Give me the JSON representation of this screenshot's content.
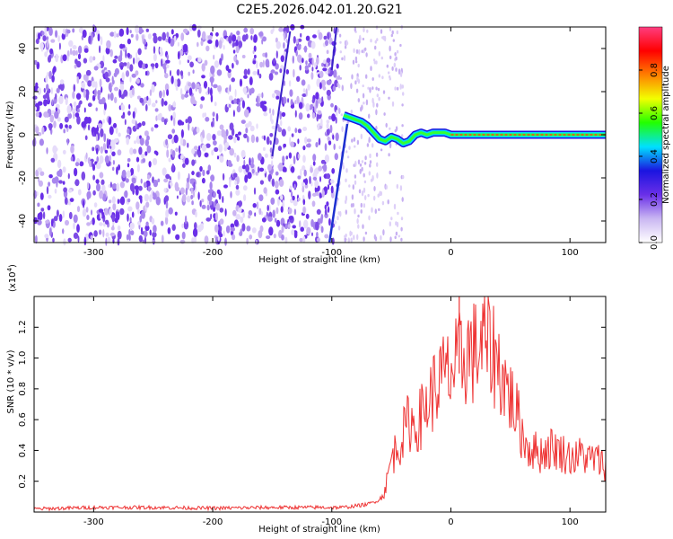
{
  "title": "C2E5.2026.042.01.20.G21",
  "chart_data": [
    {
      "type": "heatmap",
      "xlabel": "Height of straight line (km)",
      "ylabel": "Frequency (Hz)",
      "xlim": [
        -350,
        130
      ],
      "ylim": [
        -50,
        50
      ],
      "xticks": [
        -300,
        -200,
        -100,
        0,
        100
      ],
      "yticks": [
        -40,
        -20,
        0,
        20,
        40
      ],
      "colorbar": {
        "label": "Normalized spectral amplitude",
        "ticks": [
          0.0,
          0.2,
          0.4,
          0.6,
          0.8
        ],
        "range": [
          0,
          1
        ],
        "colors": [
          "#ffffff",
          "#c9b6f2",
          "#6a2fe8",
          "#1b14e0",
          "#00e0ff",
          "#22ff00",
          "#f2ff00",
          "#ff7f00",
          "#ff0000",
          "#ff3d80"
        ]
      },
      "ridge": {
        "x": [
          -90,
          -85,
          -80,
          -75,
          -70,
          -65,
          -60,
          -55,
          -50,
          -45,
          -40,
          -35,
          -30,
          -25,
          -20,
          -15,
          -10,
          -5,
          0,
          20,
          40,
          60,
          80,
          100,
          130
        ],
        "y": [
          9,
          8,
          7,
          6,
          4,
          1,
          -2,
          -3,
          -1,
          -2,
          -4,
          -3,
          0,
          1,
          0,
          1,
          1,
          1,
          0,
          0,
          0,
          0,
          0,
          0,
          0
        ]
      }
    },
    {
      "type": "line",
      "xlabel": "Height of straight line (km)",
      "ylabel": "SNR (10 * v/v)",
      "scale_label": "(x10",
      "scale_exp": "4",
      "scale_close": ")",
      "xlim": [
        -350,
        130
      ],
      "ylim": [
        0,
        1.4
      ],
      "xticks": [
        -300,
        -200,
        -100,
        0,
        100
      ],
      "yticks": [
        0.2,
        0.4,
        0.6,
        0.8,
        1.0,
        1.2
      ],
      "ytick_labels": [
        "0.2",
        "0.4",
        "0.6",
        "0.8",
        "1.0",
        "1.2"
      ],
      "series": [
        {
          "color": "#ee3333",
          "x": [
            -350,
            -300,
            -250,
            -200,
            -150,
            -110,
            -100,
            -90,
            -80,
            -70,
            -60,
            -55,
            -50,
            -45,
            -40,
            -35,
            -30,
            -25,
            -20,
            -15,
            -10,
            -5,
            0,
            5,
            10,
            15,
            20,
            25,
            30,
            35,
            40,
            45,
            50,
            55,
            60,
            65,
            70,
            75,
            80,
            85,
            90,
            95,
            100,
            105,
            110,
            115,
            120,
            125,
            130
          ],
          "values": [
            0.02,
            0.03,
            0.03,
            0.025,
            0.03,
            0.03,
            0.03,
            0.03,
            0.04,
            0.05,
            0.08,
            0.15,
            0.35,
            0.42,
            0.5,
            0.6,
            0.55,
            0.62,
            0.7,
            0.78,
            0.85,
            0.88,
            0.9,
            0.95,
            1.0,
            1.05,
            1.03,
            1.08,
            1.1,
            1.05,
            0.95,
            0.85,
            0.75,
            0.65,
            0.5,
            0.42,
            0.4,
            0.38,
            0.4,
            0.42,
            0.4,
            0.38,
            0.36,
            0.35,
            0.38,
            0.34,
            0.35,
            0.33,
            0.3
          ]
        }
      ]
    }
  ]
}
